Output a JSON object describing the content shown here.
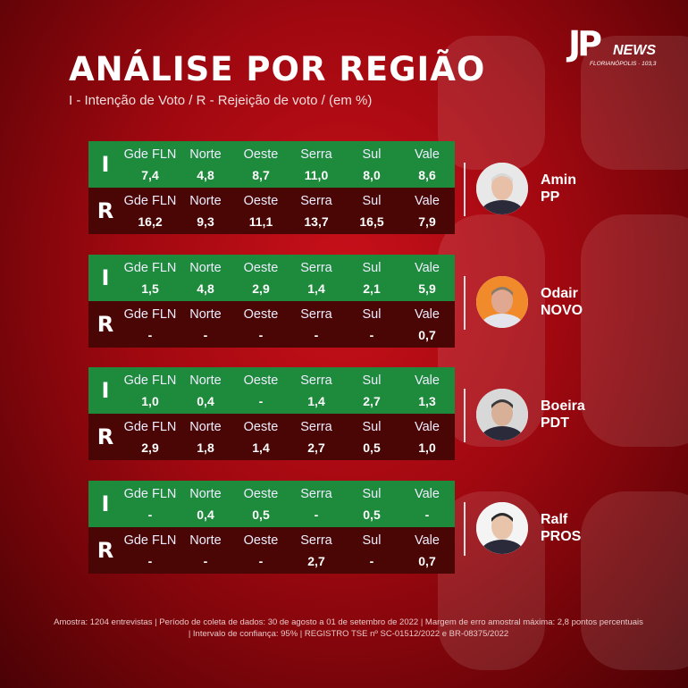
{
  "logo": {
    "brand": "JP",
    "word": "NEWS",
    "sub": "FLORIANÓPOLIS · 103,3"
  },
  "title": "ANÁLISE POR REGIÃO",
  "subtitle": "I - Intenção de Voto / R - Rejeição de voto / (em %)",
  "letters": {
    "i": "I",
    "r": "R"
  },
  "regions": [
    "Gde FLN",
    "Norte",
    "Oeste",
    "Serra",
    "Sul",
    "Vale"
  ],
  "candidates": [
    {
      "name": "Amin",
      "party": "PP",
      "intention": [
        "7,4",
        "4,8",
        "8,7",
        "11,0",
        "8,0",
        "8,6"
      ],
      "rejection": [
        "16,2",
        "9,3",
        "11,1",
        "13,7",
        "16,5",
        "7,9"
      ]
    },
    {
      "name": "Odair",
      "party": "NOVO",
      "intention": [
        "1,5",
        "4,8",
        "2,9",
        "1,4",
        "2,1",
        "5,9"
      ],
      "rejection": [
        "-",
        "-",
        "-",
        "-",
        "-",
        "0,7"
      ]
    },
    {
      "name": "Boeira",
      "party": "PDT",
      "intention": [
        "1,0",
        "0,4",
        "-",
        "1,4",
        "2,7",
        "1,3"
      ],
      "rejection": [
        "2,9",
        "1,8",
        "1,4",
        "2,7",
        "0,5",
        "1,0"
      ]
    },
    {
      "name": "Ralf",
      "party": "PROS",
      "intention": [
        "-",
        "0,4",
        "0,5",
        "-",
        "0,5",
        "-"
      ],
      "rejection": [
        "-",
        "-",
        "-",
        "2,7",
        "-",
        "0,7"
      ]
    }
  ],
  "footer": {
    "line1": "Amostra: 1204 entrevistas | Período de coleta de dados: 30 de agosto a 01 de setembro de 2022 | Margem de erro amostral máxima: 2,8 pontos percentuais",
    "line2": "| Intervalo de confiança: 95% | REGISTRO TSE nº SC-01512/2022 e BR-08375/2022"
  },
  "colors": {
    "intention_bg": "#1e8a3c",
    "rejection_bg": "#4a0505",
    "background": "#a00810"
  }
}
